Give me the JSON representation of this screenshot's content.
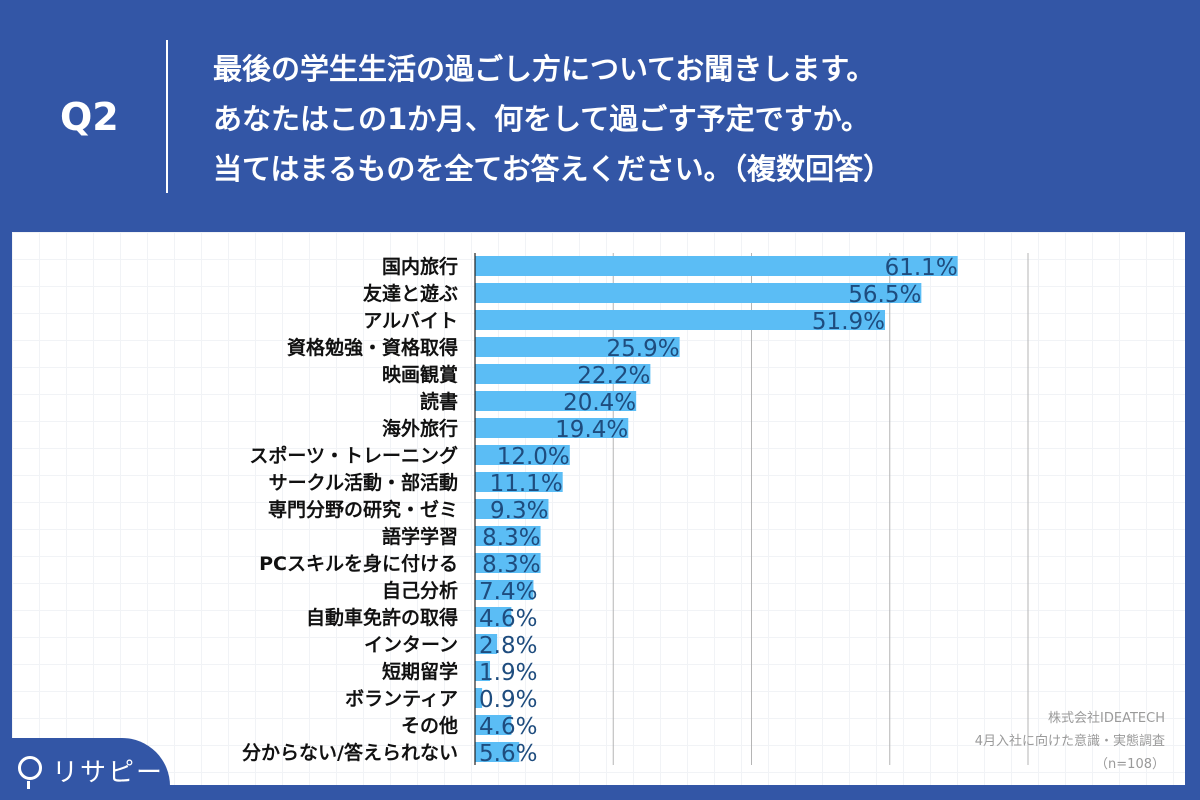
{
  "header": {
    "q_label": "Q2",
    "question_lines": [
      "最後の学生生活の過ごし方についてお聞きします。",
      "あなたはこの1か月、何をして過ごす予定ですか。",
      "当てはまるものを全てお答えください。（複数回答）"
    ]
  },
  "chart_data": {
    "type": "bar",
    "orientation": "horizontal",
    "categories": [
      "国内旅行",
      "友達と遊ぶ",
      "アルバイト",
      "資格勉強・資格取得",
      "映画観賞",
      "読書",
      "海外旅行",
      "スポーツ・トレーニング",
      "サークル活動・部活動",
      "専門分野の研究・ゼミ",
      "語学学習",
      "PCスキルを身に付ける",
      "自己分析",
      "自動車免許の取得",
      "インターン",
      "短期留学",
      "ボランティア",
      "その他",
      "分からない/答えられない"
    ],
    "values": [
      61.1,
      56.5,
      51.9,
      25.9,
      22.2,
      20.4,
      19.4,
      12.0,
      11.1,
      9.3,
      8.3,
      8.3,
      7.4,
      4.6,
      2.8,
      1.9,
      0.9,
      4.6,
      5.6
    ],
    "value_labels": [
      "61.1%",
      "56.5%",
      "51.9%",
      "25.9%",
      "22.2%",
      "20.4%",
      "19.4%",
      "12.0%",
      "11.1%",
      "9.3%",
      "8.3%",
      "8.3%",
      "7.4%",
      "4.6%",
      "2.8%",
      "1.9%",
      "0.9%",
      "4.6%",
      "5.6%"
    ],
    "xlim": [
      0,
      70
    ],
    "grid": true,
    "bar_color": "#5bbdf5",
    "label_color": "#1e4c7e"
  },
  "source": {
    "company": "株式会社IDEATECH",
    "survey": "4月入社に向けた意識・実態調査",
    "n": "（n=108）"
  },
  "logo": {
    "text": "リサピー"
  },
  "colors": {
    "background": "#3356a6",
    "panel": "#ffffff"
  }
}
